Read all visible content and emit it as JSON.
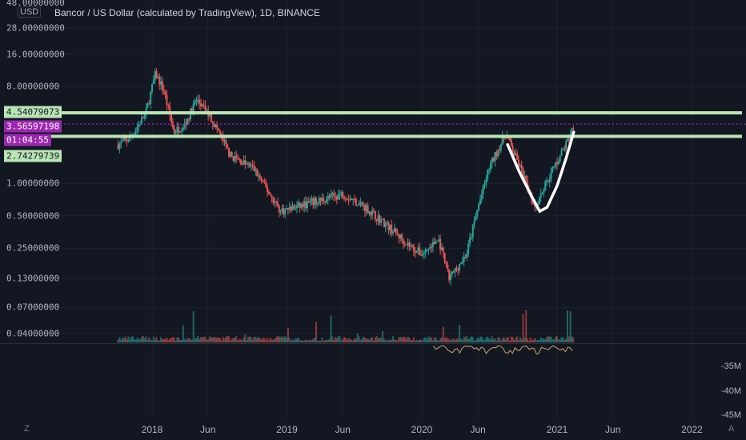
{
  "header": {
    "title": "Bancor / US Dollar (calculated by TradingView), 1D, BINANCE",
    "currency": "USD",
    "top_value": "48.00000000"
  },
  "axis": {
    "left_ticks": [
      "28.00000000",
      "16.00000000",
      "8.00000000",
      "1.00000000",
      "0.50000000",
      "0.25000000",
      "0.13000000",
      "0.07000000",
      "0.04000000"
    ],
    "right_ticks": [
      "-35M",
      "-40M",
      "-45M"
    ],
    "x_ticks": [
      "2018",
      "Jun",
      "2019",
      "Jun",
      "2020",
      "Jun",
      "2021",
      "Jun",
      "2022"
    ]
  },
  "tags": {
    "upper_level": "4.54079073",
    "current_price": "3.56597198",
    "countdown": "01:04:55",
    "lower_level": "2.74279739"
  },
  "corners": {
    "left": "Z",
    "right": "A"
  },
  "colors": {
    "background": "#131722",
    "up": "#26a69a",
    "down": "#ef5350",
    "level_line": "#b9e4b4",
    "price_line": "#9c27b0",
    "curve": "#ffffff",
    "obv": "#c8a96e"
  },
  "chart_data": {
    "type": "candlestick",
    "symbol": "Bancor / US Dollar",
    "interval": "1D",
    "exchange": "BINANCE",
    "y_scale": "log",
    "ylim": [
      0.033,
      48
    ],
    "x_range": [
      "2017-09",
      "2022-04"
    ],
    "horizontal_levels": [
      4.54079073,
      2.74279739
    ],
    "current_price": 3.56597198,
    "close_path": [
      {
        "date": "2017-10-01",
        "close": 2.3
      },
      {
        "date": "2017-11-01",
        "close": 2.6
      },
      {
        "date": "2017-12-15",
        "close": 4.5
      },
      {
        "date": "2018-01-10",
        "close": 10.5
      },
      {
        "date": "2018-02-01",
        "close": 7.5
      },
      {
        "date": "2018-03-01",
        "close": 3.0
      },
      {
        "date": "2018-04-01",
        "close": 3.6
      },
      {
        "date": "2018-05-01",
        "close": 6.0
      },
      {
        "date": "2018-06-01",
        "close": 4.5
      },
      {
        "date": "2018-07-01",
        "close": 3.0
      },
      {
        "date": "2018-08-01",
        "close": 1.8
      },
      {
        "date": "2018-10-01",
        "close": 1.4
      },
      {
        "date": "2018-12-15",
        "close": 0.55
      },
      {
        "date": "2019-03-01",
        "close": 0.65
      },
      {
        "date": "2019-06-01",
        "close": 0.8
      },
      {
        "date": "2019-08-01",
        "close": 0.6
      },
      {
        "date": "2019-10-01",
        "close": 0.4
      },
      {
        "date": "2019-12-01",
        "close": 0.26
      },
      {
        "date": "2020-01-01",
        "close": 0.22
      },
      {
        "date": "2020-02-15",
        "close": 0.3
      },
      {
        "date": "2020-03-15",
        "close": 0.13
      },
      {
        "date": "2020-05-01",
        "close": 0.22
      },
      {
        "date": "2020-06-01",
        "close": 0.6
      },
      {
        "date": "2020-07-01",
        "close": 1.4
      },
      {
        "date": "2020-08-15",
        "close": 2.9
      },
      {
        "date": "2020-10-01",
        "close": 1.2
      },
      {
        "date": "2020-11-01",
        "close": 0.6
      },
      {
        "date": "2020-12-01",
        "close": 1.0
      },
      {
        "date": "2021-01-01",
        "close": 1.6
      },
      {
        "date": "2021-02-01",
        "close": 2.6
      },
      {
        "date": "2021-02-15",
        "close": 3.56597198
      }
    ]
  }
}
